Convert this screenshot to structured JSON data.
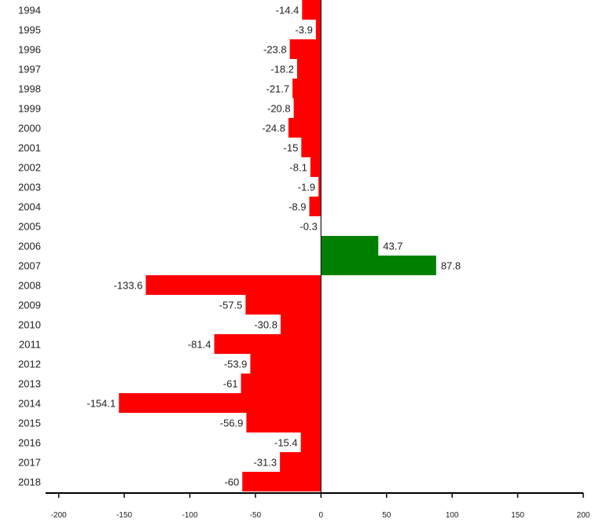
{
  "chart_data": {
    "type": "bar",
    "orientation": "horizontal",
    "categories": [
      "1994",
      "1995",
      "1996",
      "1997",
      "1998",
      "1999",
      "2000",
      "2001",
      "2002",
      "2003",
      "2004",
      "2005",
      "2006",
      "2007",
      "2008",
      "2009",
      "2010",
      "2011",
      "2012",
      "2013",
      "2014",
      "2015",
      "2016",
      "2017",
      "2018"
    ],
    "values": [
      -14.4,
      -3.9,
      -23.8,
      -18.2,
      -21.7,
      -20.8,
      -24.8,
      -15,
      -8.1,
      -1.9,
      -8.9,
      -0.3,
      43.7,
      87.8,
      -133.6,
      -57.5,
      -30.8,
      -81.4,
      -53.9,
      -61,
      -154.1,
      -56.9,
      -15.4,
      -31.3,
      -60
    ],
    "value_labels": [
      "-14.4",
      "-3.9",
      "-23.8",
      "-18.2",
      "-21.7",
      "-20.8",
      "-24.8",
      "-15",
      "-8.1",
      "-1.9",
      "-8.9",
      "-0.3",
      "43.7",
      "87.8",
      "-133.6",
      "-57.5",
      "-30.8",
      "-81.4",
      "-53.9",
      "-61",
      "-154.1",
      "-56.9",
      "-15.4",
      "-31.3",
      "-60"
    ],
    "x_ticks": [
      -200,
      -150,
      -100,
      -50,
      0,
      50,
      100,
      150,
      200
    ],
    "x_tick_labels": [
      "-200",
      "-150",
      "-100",
      "-50",
      "0",
      "50",
      "100",
      "150",
      "200"
    ],
    "xlim": [
      -210,
      200
    ],
    "title": "",
    "xlabel": "",
    "ylabel": "",
    "grid": false,
    "legend": "none",
    "colors": {
      "negative": "#ff0000",
      "positive": "#008000",
      "axis": "#000000",
      "text": "#222222"
    }
  }
}
